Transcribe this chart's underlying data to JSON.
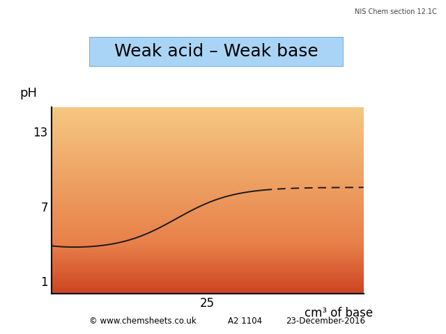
{
  "title": "Weak acid – Weak base",
  "title_bg_color": "#aad4f5",
  "title_border_color": "#7ab0d8",
  "title_fontsize": 18,
  "xlabel": "cm³ of base",
  "ylabel": "pH",
  "x_tick_label": "25",
  "x_tick_pos": 25,
  "ylim": [
    0,
    15
  ],
  "xlim": [
    0,
    50
  ],
  "yticks": [
    1,
    7,
    13
  ],
  "footer_left": "© www.chemsheets.co.uk",
  "footer_mid": "A2 1104",
  "footer_right": "23-December-2016",
  "header_right": "NIS Chem section 12.1C",
  "bg_color": "#ffffff",
  "curve_color": "#1a1a1a",
  "upper_zone_top": "#f5c882",
  "upper_zone_bottom": "#f0a855",
  "lower_zone_top": "#e8804a",
  "lower_zone_bottom": "#cc4422",
  "transition_ph": 4.0
}
